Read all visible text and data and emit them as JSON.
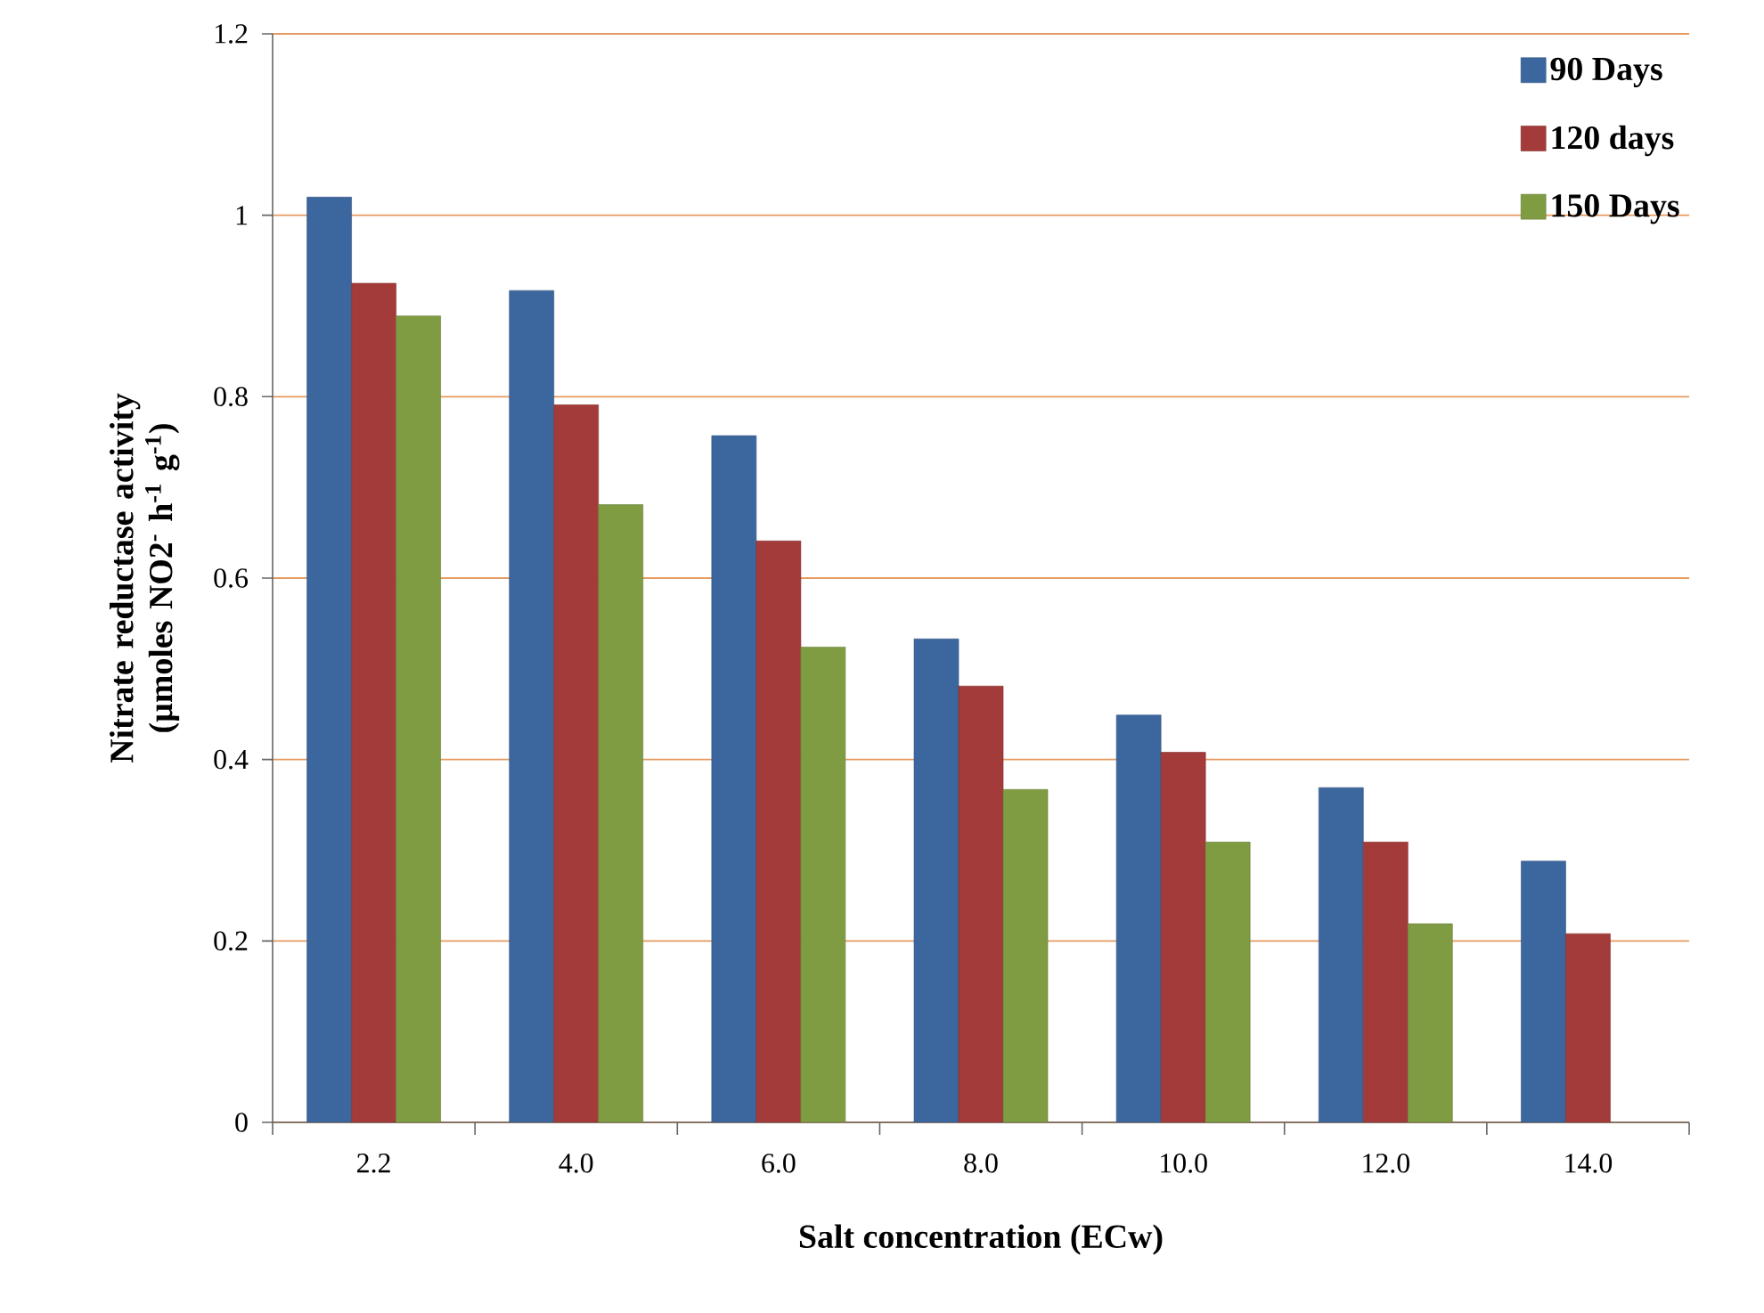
{
  "chart_data": {
    "type": "bar",
    "xlabel": "Salt concentration  (ECw)",
    "ylabel": "Nitrate reductase activity (µmoles NO2$^{-}$ h$^{-1}$ g$^{-1}$)",
    "categories": [
      "2.2",
      "4.0",
      "6.0",
      "8.0",
      "10.0",
      "12.0",
      "14.0"
    ],
    "series": [
      {
        "name": "90 Days",
        "color": "#3c679e",
        "values": [
          1.02,
          0.917,
          0.757,
          0.533,
          0.449,
          0.369,
          0.288
        ]
      },
      {
        "name": "120 days",
        "color": "#a33b3a",
        "values": [
          0.925,
          0.791,
          0.641,
          0.481,
          0.408,
          0.309,
          0.208
        ]
      },
      {
        "name": "150 Days",
        "color": "#809c43",
        "values": [
          0.889,
          0.681,
          0.524,
          0.367,
          0.309,
          0.219,
          null
        ]
      }
    ],
    "ylim": [
      0,
      1.2
    ],
    "yticks": [
      0,
      0.2,
      0.4,
      0.6,
      0.8,
      1,
      1.2
    ],
    "grid": "y",
    "legend": "top right"
  }
}
